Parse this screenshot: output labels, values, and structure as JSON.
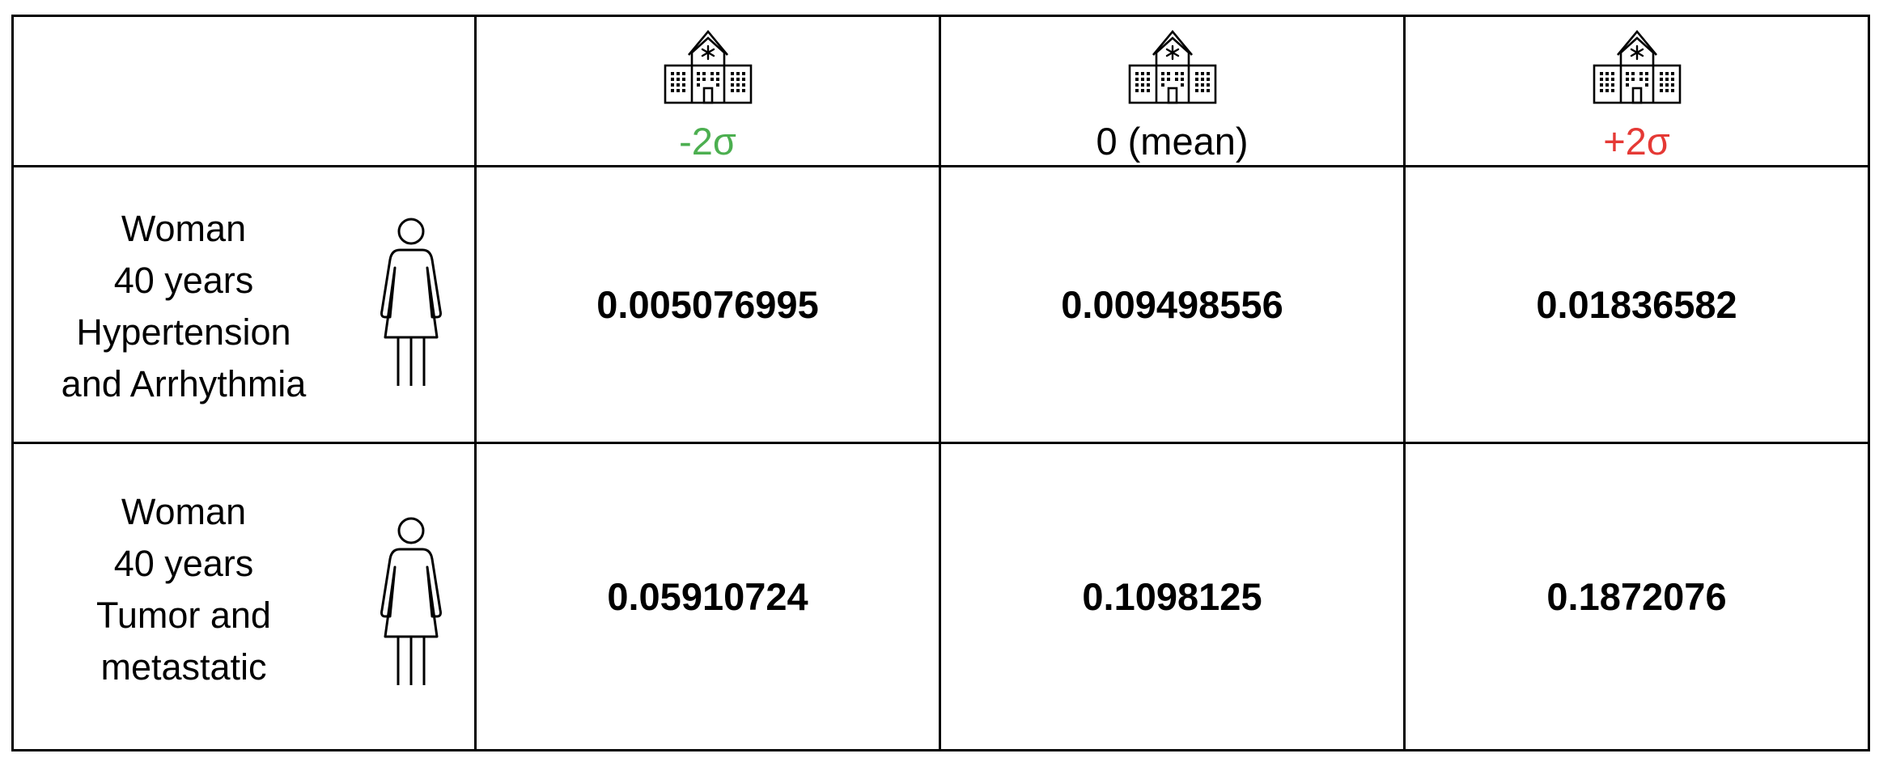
{
  "columns": [
    {
      "label": "-2σ",
      "color": "#4caf50",
      "icon": "hospital-icon"
    },
    {
      "label": "0 (mean)",
      "color": "#000000",
      "icon": "hospital-icon"
    },
    {
      "label": "+2σ",
      "color": "#e53935",
      "icon": "hospital-icon"
    }
  ],
  "rows": [
    {
      "profile_lines": [
        "Woman",
        "40 years",
        "Hypertension",
        "and Arrhythmia"
      ],
      "icon": "woman-icon",
      "values": [
        "0.005076995",
        "0.009498556",
        "0.01836582"
      ]
    },
    {
      "profile_lines": [
        "Woman",
        "40 years",
        "Tumor and",
        "metastatic"
      ],
      "icon": "woman-icon",
      "values": [
        "0.05910724",
        "0.1098125",
        "0.1872076"
      ]
    }
  ]
}
